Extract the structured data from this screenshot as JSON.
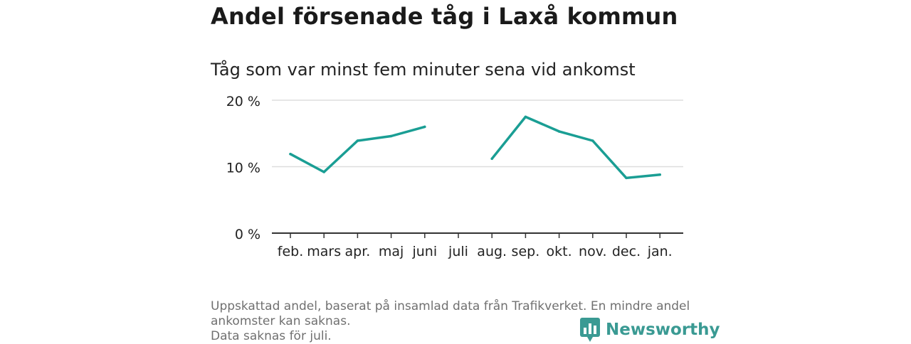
{
  "title": "Andel försenade tåg i Laxå kommun",
  "subtitle": "Tåg som var minst fem minuter sena vid ankomst",
  "footer": {
    "note_line1": "Uppskattad andel, baserat på insamlad data från Trafikverket. En mindre andel",
    "note_line2": "ankomster kan saknas.",
    "note_line3": "Data saknas för juli."
  },
  "brand": {
    "name": "Newsworthy",
    "icon": "bar-chart-speech-bubble-icon",
    "color": "#3a9a93"
  },
  "colors": {
    "line": "#1a9e94",
    "grid": "#dddddd",
    "axis": "#333333",
    "text": "#222222"
  },
  "chart_data": {
    "type": "line",
    "categories": [
      "feb.",
      "mars",
      "apr.",
      "maj",
      "juni",
      "juli",
      "aug.",
      "sep.",
      "okt.",
      "nov.",
      "dec.",
      "jan."
    ],
    "series": [
      {
        "values": [
          11.9,
          9.2,
          13.9,
          14.6,
          16.0,
          null,
          11.2,
          17.5,
          15.3,
          13.9,
          8.3,
          8.8
        ]
      }
    ],
    "ylim": [
      0,
      20
    ],
    "yticks": [
      0,
      10,
      20
    ],
    "ytick_labels": [
      "0 %",
      "10 %",
      "20 %"
    ],
    "xlabel": "",
    "ylabel": "",
    "grid": true,
    "legend": "none"
  }
}
